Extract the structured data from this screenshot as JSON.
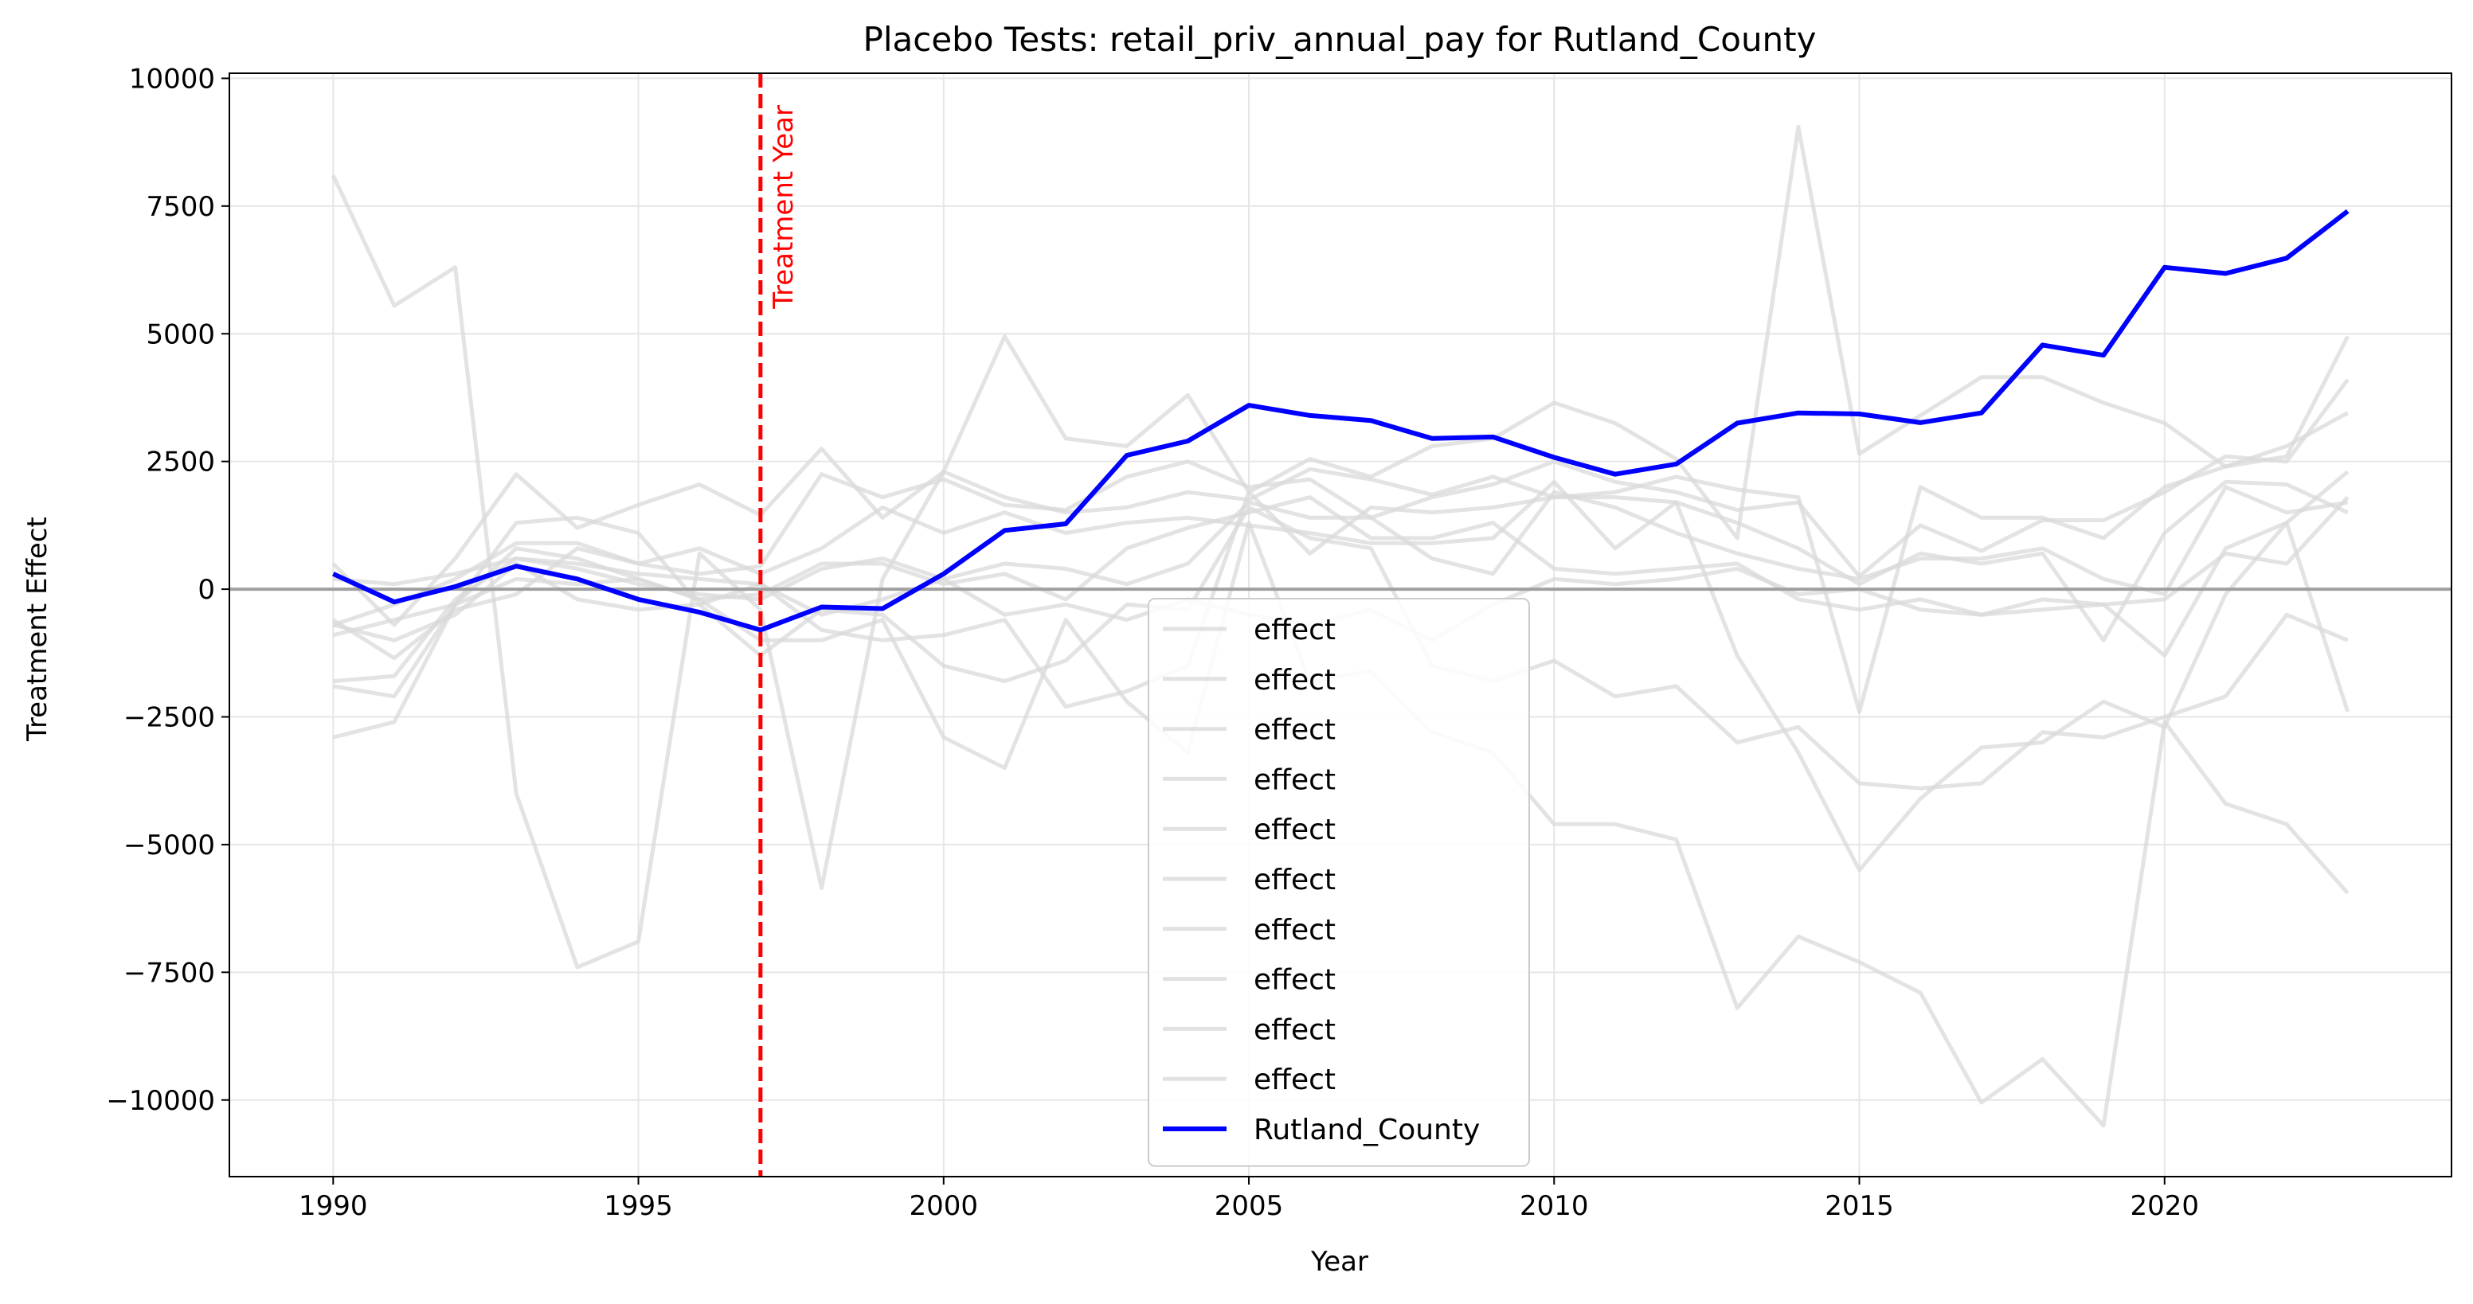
{
  "chart_data": {
    "type": "line",
    "title": "Placebo Tests: retail_priv_annual_pay for Rutland_County",
    "xlabel": "Year",
    "ylabel": "Treatment Effect",
    "xlim": [
      1988.3,
      2024.7
    ],
    "ylim": [
      -11500,
      10100
    ],
    "x_ticks": [
      1990,
      1995,
      2000,
      2005,
      2010,
      2015,
      2020
    ],
    "x_tick_labels": [
      "1990",
      "1995",
      "2000",
      "2005",
      "2010",
      "2015",
      "2020"
    ],
    "y_ticks": [
      -10000,
      -7500,
      -5000,
      -2500,
      0,
      2500,
      5000,
      7500,
      10000
    ],
    "y_tick_labels": [
      "−10000",
      "−7500",
      "−5000",
      "−2500",
      "0",
      "2500",
      "5000",
      "7500",
      "10000"
    ],
    "grid": true,
    "legend_position": "lower-center",
    "zero_line": 0,
    "treatment_year": 1997,
    "treatment_label": "Treatment Year",
    "colors": {
      "placebo": "#d9d9d9",
      "treated": "#0000ff",
      "treatment_line": "#ff0000",
      "zero_line": "#a0a0a0",
      "grid": "#e6e6e6"
    },
    "x": [
      1990,
      1991,
      1992,
      1993,
      1994,
      1995,
      1996,
      1997,
      1998,
      1999,
      2000,
      2001,
      2002,
      2003,
      2004,
      2005,
      2006,
      2007,
      2008,
      2009,
      2010,
      2011,
      2012,
      2013,
      2014,
      2015,
      2016,
      2017,
      2018,
      2019,
      2020,
      2021,
      2022,
      2023
    ],
    "series": [
      {
        "name": "effect",
        "role": "placebo",
        "values": [
          8100,
          5550,
          6300,
          -4000,
          -7400,
          -6900,
          700,
          -400,
          -5850,
          200,
          2300,
          4950,
          2950,
          2800,
          3800,
          1900,
          2550,
          2200,
          2800,
          2950,
          3650,
          3250,
          2550,
          1000,
          9050,
          2650,
          3400,
          4150,
          4150,
          3650,
          3250,
          2400,
          2600,
          4950
        ]
      },
      {
        "name": "effect",
        "role": "placebo",
        "values": [
          500,
          -700,
          600,
          2250,
          1200,
          1650,
          2050,
          1450,
          2750,
          1400,
          2300,
          1800,
          1500,
          1600,
          1900,
          1750,
          2350,
          2150,
          1850,
          2200,
          1800,
          1900,
          2200,
          1950,
          1800,
          -2400,
          2000,
          1400,
          1400,
          1000,
          2000,
          2400,
          2800,
          3450
        ]
      },
      {
        "name": "effect",
        "role": "placebo",
        "values": [
          -600,
          -1350,
          -400,
          -100,
          800,
          500,
          300,
          450,
          2250,
          1800,
          2150,
          1650,
          1550,
          2200,
          2500,
          2000,
          2150,
          1400,
          1800,
          2050,
          2500,
          2100,
          1900,
          1550,
          1700,
          250,
          1250,
          750,
          1350,
          1350,
          1900,
          2600,
          2500,
          4100
        ]
      },
      {
        "name": "effect",
        "role": "placebo",
        "values": [
          -700,
          -300,
          200,
          900,
          900,
          500,
          800,
          300,
          800,
          1600,
          1100,
          1500,
          1100,
          1300,
          1400,
          1250,
          1100,
          900,
          900,
          1000,
          2100,
          800,
          1700,
          1300,
          800,
          100,
          700,
          500,
          700,
          -1000,
          1100,
          2100,
          2050,
          1500
        ]
      },
      {
        "name": "effect",
        "role": "placebo",
        "values": [
          -1800,
          -1700,
          -200,
          600,
          400,
          100,
          -100,
          -200,
          400,
          600,
          200,
          500,
          400,
          100,
          500,
          1700,
          1400,
          1400,
          600,
          300,
          1900,
          1600,
          1100,
          700,
          400,
          200,
          600,
          600,
          800,
          200,
          -100,
          2000,
          1500,
          1700
        ]
      },
      {
        "name": "effect",
        "role": "placebo",
        "values": [
          -900,
          -600,
          -300,
          200,
          100,
          200,
          -200,
          -100,
          500,
          500,
          100,
          300,
          -200,
          800,
          1200,
          1500,
          1800,
          1000,
          1000,
          1300,
          400,
          300,
          400,
          500,
          -200,
          -400,
          -200,
          -500,
          -400,
          -300,
          -1300,
          800,
          1300,
          2300
        ]
      },
      {
        "name": "effect",
        "role": "placebo",
        "values": [
          -2900,
          -2600,
          -300,
          1300,
          1400,
          1100,
          -300,
          -1300,
          -400,
          -500,
          -1500,
          -1800,
          -1400,
          -300,
          -400,
          1600,
          1000,
          800,
          -1500,
          -1800,
          -1400,
          -2100,
          -1900,
          -3000,
          -2700,
          -3800,
          -3900,
          -3800,
          -2800,
          -2900,
          -2500,
          -2100,
          -500,
          -1000
        ]
      },
      {
        "name": "effect",
        "role": "placebo",
        "values": [
          -1900,
          -2100,
          -300,
          800,
          600,
          200,
          -200,
          -1000,
          -1000,
          -600,
          -2900,
          -3500,
          -600,
          -2200,
          -3200,
          1300,
          -1800,
          -1600,
          -2800,
          -3200,
          -4600,
          -4600,
          -4900,
          -8200,
          -6800,
          -7300,
          -7900,
          -10050,
          -9200,
          -10500,
          -2600,
          -4200,
          -4600,
          -5950
        ]
      },
      {
        "name": "effect",
        "role": "placebo",
        "values": [
          -700,
          -1000,
          -500,
          500,
          -200,
          -400,
          -300,
          100,
          -800,
          -1000,
          -900,
          -600,
          -2300,
          -2000,
          -1500,
          1900,
          700,
          1600,
          1500,
          1600,
          1800,
          1800,
          1700,
          -1300,
          -3200,
          -5500,
          -4100,
          -3100,
          -3000,
          -2200,
          -2700,
          -100,
          1300,
          -2400
        ]
      },
      {
        "name": "effect",
        "role": "placebo",
        "values": [
          200,
          100,
          300,
          600,
          500,
          300,
          200,
          100,
          -500,
          -200,
          200,
          -500,
          -300,
          -600,
          -200,
          -500,
          -700,
          -400,
          -1000,
          -300,
          200,
          100,
          200,
          400,
          -100,
          0,
          -400,
          -500,
          -200,
          -300,
          -200,
          700,
          500,
          1800
        ]
      },
      {
        "name": "Rutland_County",
        "role": "treated",
        "values": [
          300,
          -250,
          50,
          450,
          200,
          -200,
          -450,
          -800,
          -350,
          -380,
          300,
          1150,
          1280,
          2620,
          2900,
          3600,
          3400,
          3300,
          2950,
          2980,
          2580,
          2250,
          2450,
          3250,
          3450,
          3430,
          3260,
          3450,
          4780,
          4580,
          6300,
          6180,
          6480,
          7400
        ]
      }
    ]
  }
}
